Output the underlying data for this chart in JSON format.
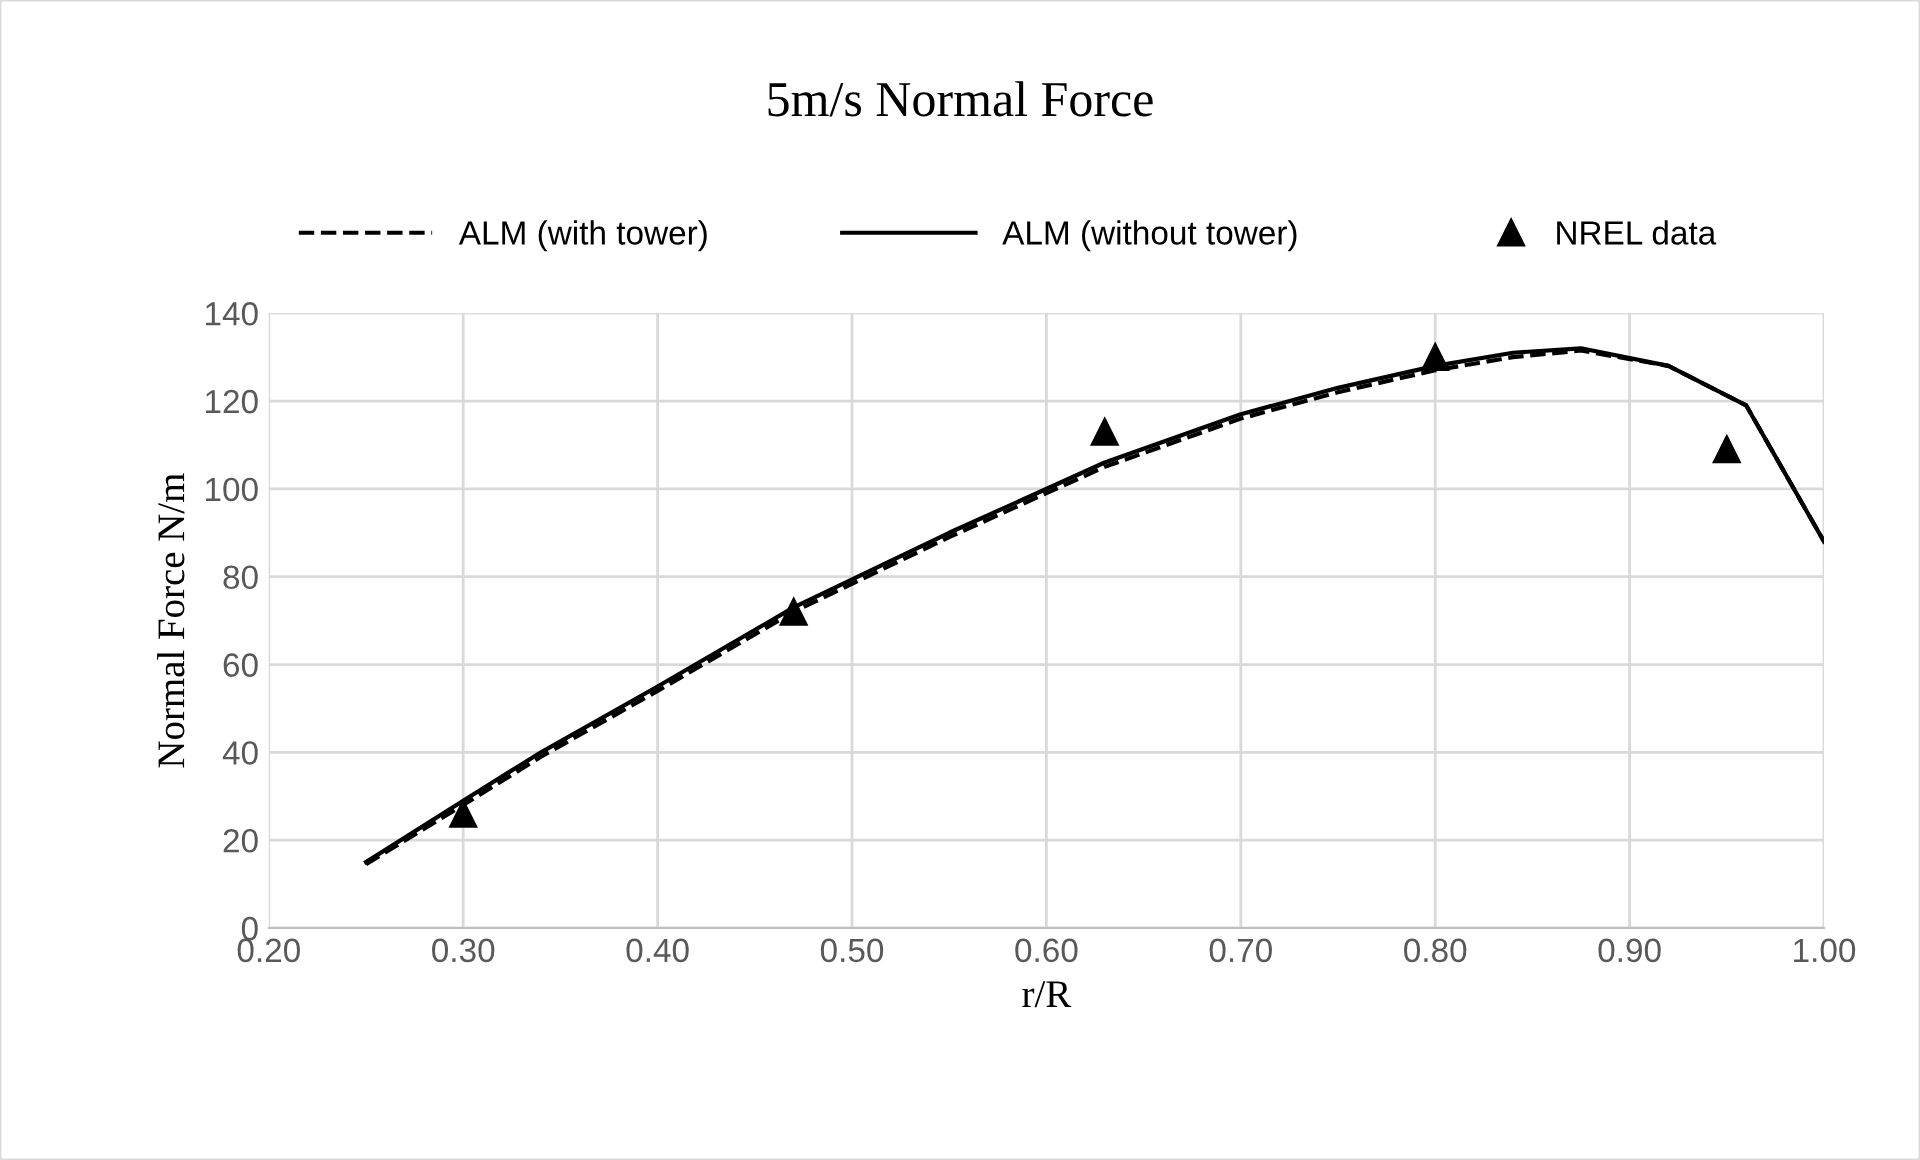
{
  "chart_data": {
    "type": "line",
    "title": "5m/s Normal Force",
    "xlabel": "r/R",
    "ylabel": "Normal Force N/m",
    "xlim": [
      0.2,
      1.0
    ],
    "xticks": [
      {
        "value": 0.2,
        "label": "0.20"
      },
      {
        "value": 0.3,
        "label": "0.30"
      },
      {
        "value": 0.4,
        "label": "0.40"
      },
      {
        "value": 0.5,
        "label": "0.50"
      },
      {
        "value": 0.6,
        "label": "0.60"
      },
      {
        "value": 0.7,
        "label": "0.70"
      },
      {
        "value": 0.8,
        "label": "0.80"
      },
      {
        "value": 0.9,
        "label": "0.90"
      },
      {
        "value": 1.0,
        "label": "1.00"
      }
    ],
    "ylim": [
      0,
      140
    ],
    "yticks": [
      0,
      20,
      40,
      60,
      80,
      100,
      120,
      140
    ],
    "grid": true,
    "legend": "top",
    "series": [
      {
        "name": "ALM (with tower)",
        "color": "#000000",
        "line_style": "dashed",
        "marker": "none",
        "x": [
          0.25,
          0.3,
          0.34,
          0.4,
          0.47,
          0.55,
          0.63,
          0.7,
          0.75,
          0.8,
          0.84,
          0.875,
          0.92,
          0.96,
          1.0
        ],
        "values": [
          14.5,
          28,
          39,
          54,
          72,
          89,
          105,
          116,
          122,
          127,
          130,
          131.5,
          128,
          119,
          88
        ]
      },
      {
        "name": "ALM (without tower)",
        "color": "#000000",
        "line_style": "solid",
        "marker": "none",
        "x": [
          0.25,
          0.3,
          0.34,
          0.4,
          0.47,
          0.55,
          0.63,
          0.7,
          0.75,
          0.8,
          0.84,
          0.875,
          0.92,
          0.96,
          1.0
        ],
        "values": [
          15,
          29,
          40,
          55,
          73,
          90,
          106,
          117,
          123,
          128,
          131,
          132,
          128,
          119,
          88
        ]
      },
      {
        "name": "NREL data",
        "type": "scatter",
        "color": "#000000",
        "marker": "triangle",
        "x": [
          0.3,
          0.47,
          0.63,
          0.8,
          0.95
        ],
        "values": [
          26,
          72,
          113,
          130,
          109
        ]
      }
    ]
  }
}
